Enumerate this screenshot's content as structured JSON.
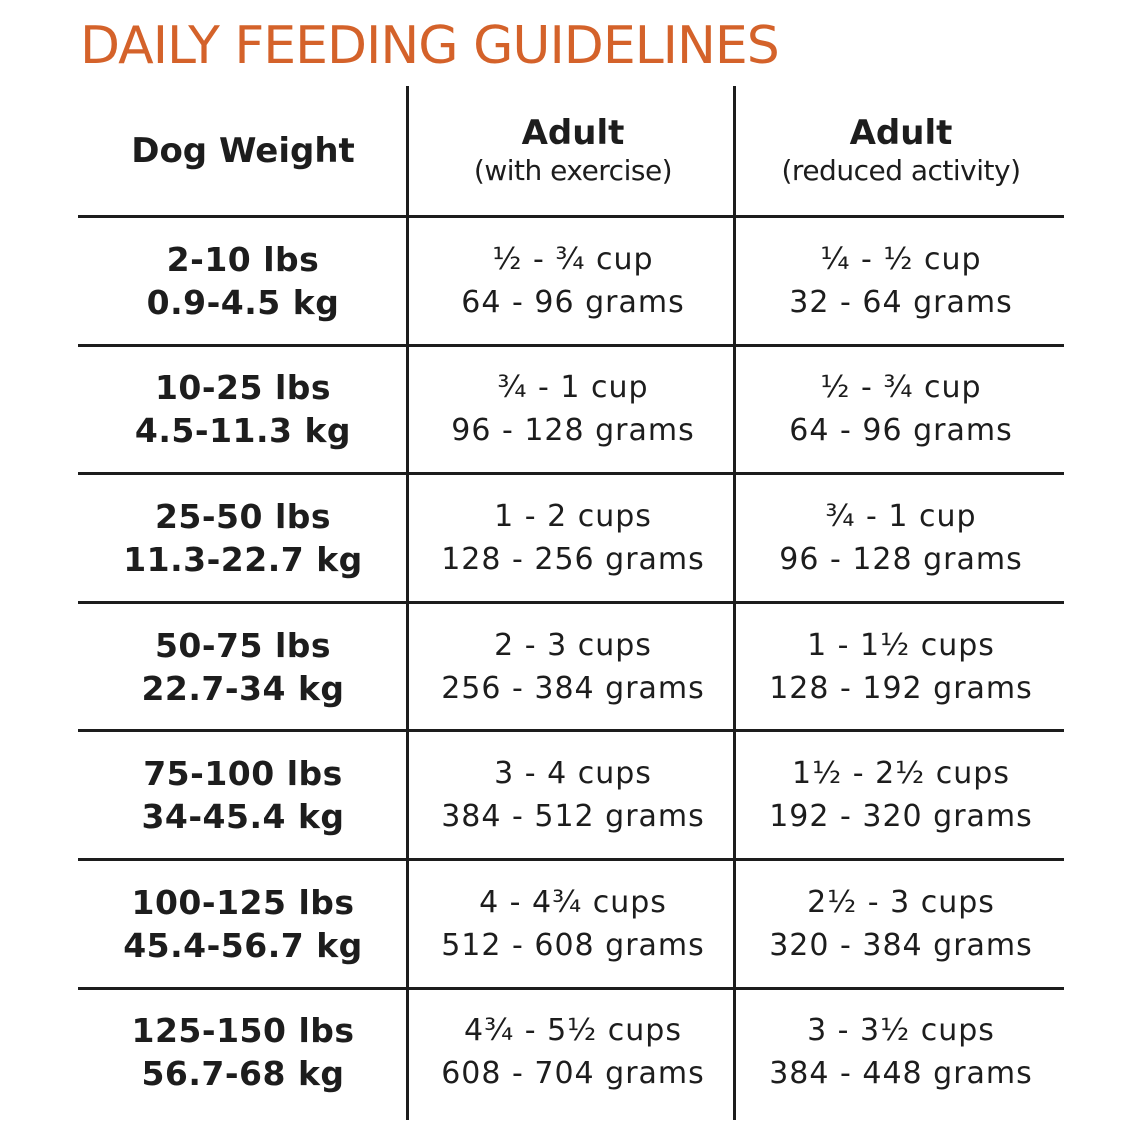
{
  "title": "DAILY FEEDING GUIDELINES",
  "colors": {
    "title": "#d4622a",
    "text": "#1d1d1d",
    "lines": "#1d1d1d"
  },
  "headers": {
    "weight": "Dog Weight",
    "exercise_main": "Adult",
    "exercise_sub": "(with exercise)",
    "reduced_main": "Adult",
    "reduced_sub": "(reduced activity)"
  },
  "rows": [
    {
      "lbs": "2-10 lbs",
      "kg": "0.9-4.5 kg",
      "exercise_cups": "½ - ¾ cup",
      "exercise_grams": "64 - 96 grams",
      "reduced_cups": "¼ - ½ cup",
      "reduced_grams": "32 - 64 grams"
    },
    {
      "lbs": "10-25 lbs",
      "kg": "4.5-11.3 kg",
      "exercise_cups": "¾ - 1 cup",
      "exercise_grams": "96 - 128 grams",
      "reduced_cups": "½ - ¾ cup",
      "reduced_grams": "64 - 96 grams"
    },
    {
      "lbs": "25-50 lbs",
      "kg": "11.3-22.7 kg",
      "exercise_cups": "1 - 2 cups",
      "exercise_grams": "128 - 256 grams",
      "reduced_cups": "¾ - 1 cup",
      "reduced_grams": "96 - 128 grams"
    },
    {
      "lbs": "50-75 lbs",
      "kg": "22.7-34 kg",
      "exercise_cups": "2 - 3 cups",
      "exercise_grams": "256 - 384 grams",
      "reduced_cups": "1 - 1½ cups",
      "reduced_grams": "128 - 192 grams"
    },
    {
      "lbs": "75-100 lbs",
      "kg": "34-45.4 kg",
      "exercise_cups": "3 - 4 cups",
      "exercise_grams": "384 - 512 grams",
      "reduced_cups": "1½ - 2½ cups",
      "reduced_grams": "192 - 320 grams"
    },
    {
      "lbs": "100-125 lbs",
      "kg": "45.4-56.7 kg",
      "exercise_cups": "4 - 4¾ cups",
      "exercise_grams": "512 - 608 grams",
      "reduced_cups": "2½ - 3 cups",
      "reduced_grams": "320 - 384 grams"
    },
    {
      "lbs": "125-150 lbs",
      "kg": "56.7-68 kg",
      "exercise_cups": "4¾ - 5½ cups",
      "exercise_grams": "608 - 704 grams",
      "reduced_cups": "3 - 3½ cups",
      "reduced_grams": "384 - 448 grams"
    }
  ]
}
